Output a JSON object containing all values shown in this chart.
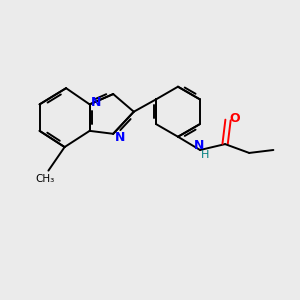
{
  "background_color": "#ebebeb",
  "bond_color": "#000000",
  "nitrogen_color": "#0000ff",
  "oxygen_color": "#ff0000",
  "nh_color": "#008080",
  "figsize": [
    3.0,
    3.0
  ],
  "dpi": 100,
  "lw": 1.4,
  "fs_label": 9,
  "xlim": [
    0,
    10
  ],
  "ylim": [
    0,
    10
  ]
}
